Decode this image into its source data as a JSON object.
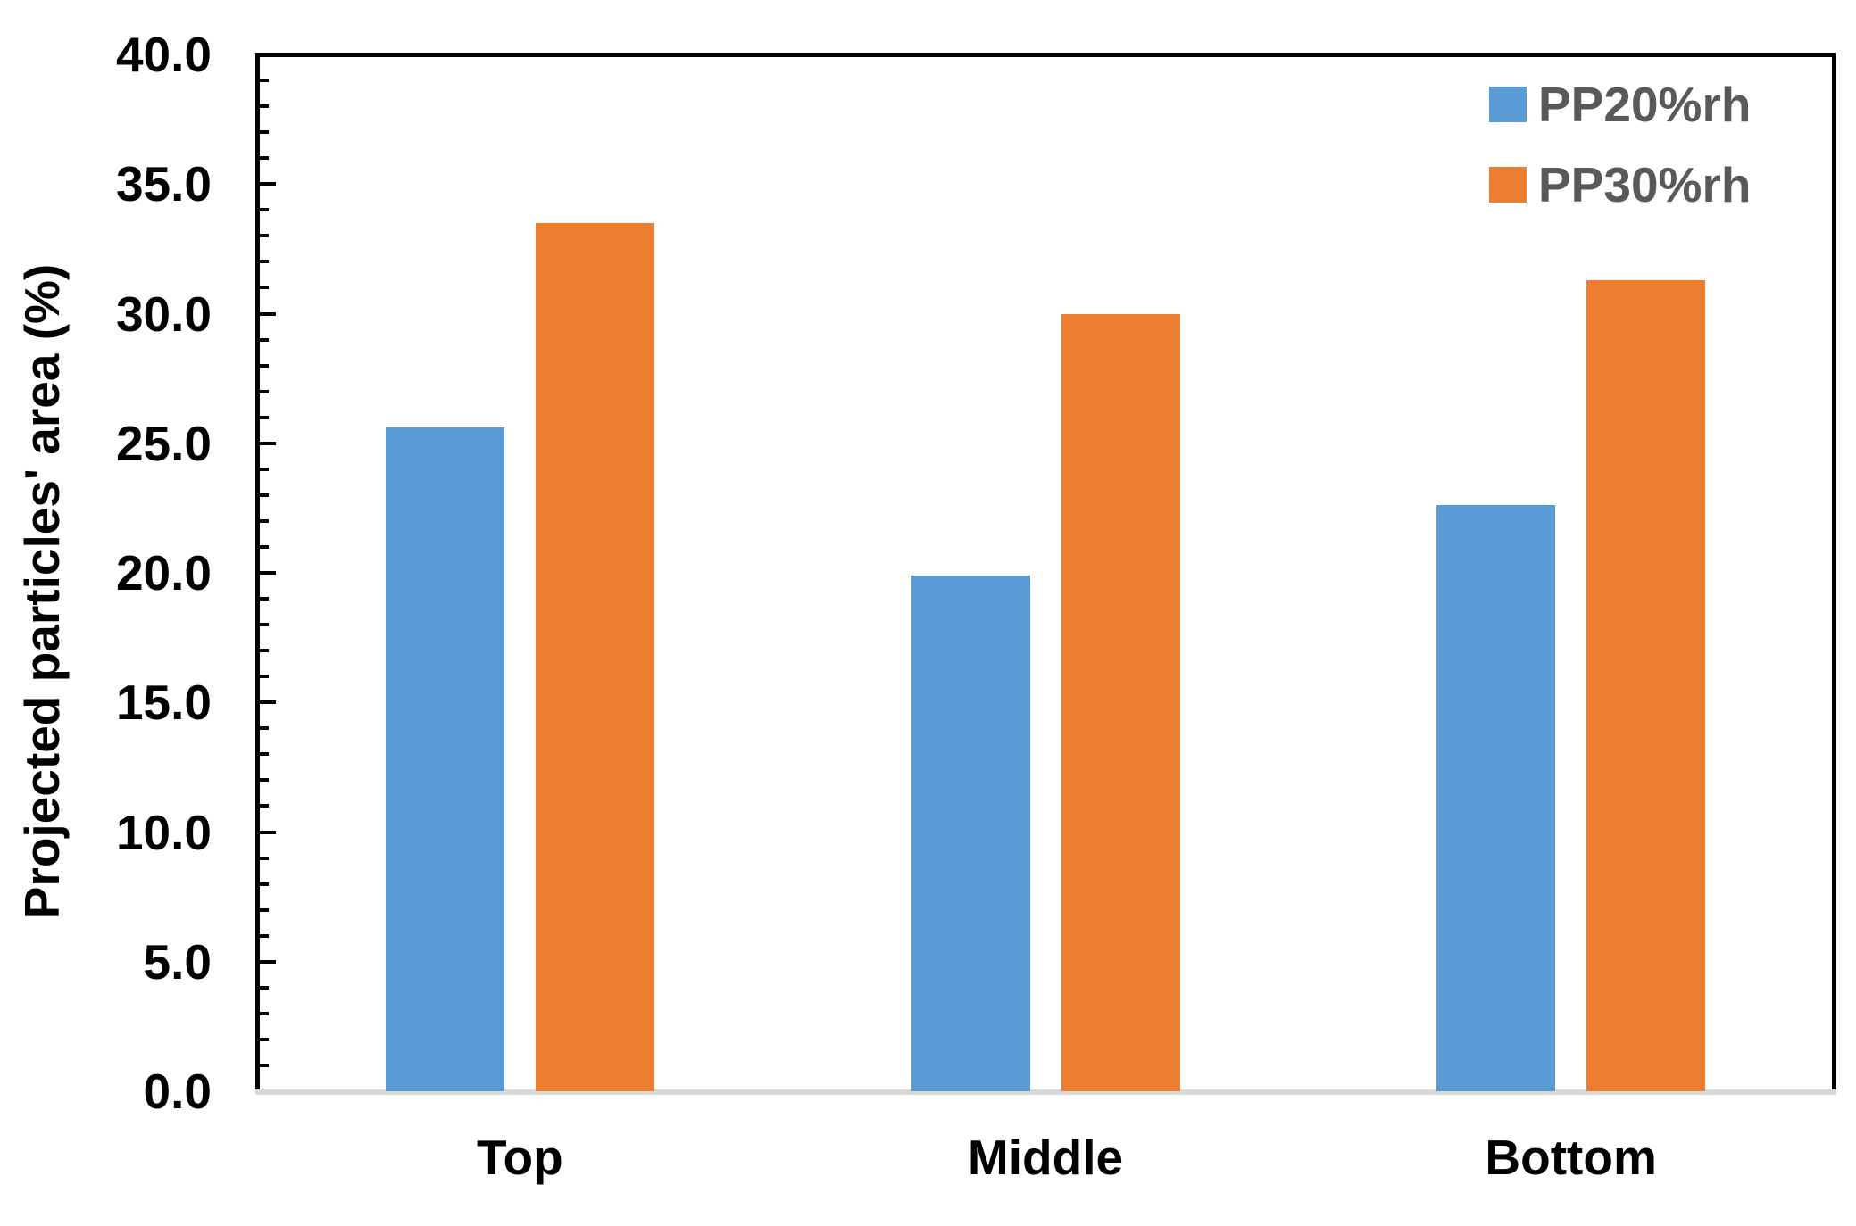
{
  "chart_data": {
    "type": "bar",
    "title": "",
    "categories": [
      "Top",
      "Middle",
      "Bottom"
    ],
    "series": [
      {
        "name": "PP20%rh",
        "color": "#5b9bd5",
        "values": [
          25.6,
          19.9,
          22.6
        ]
      },
      {
        "name": "PP30%rh",
        "color": "#ed7d31",
        "values": [
          33.5,
          30.0,
          31.3
        ]
      }
    ],
    "xlabel": "",
    "ylabel": "Projected particles' area (%)",
    "ylim": [
      0,
      40
    ],
    "ytick_step": 5,
    "minor_tick_step": 1,
    "ytick_labels": [
      "0.0",
      "5.0",
      "10.0",
      "15.0",
      "20.0",
      "25.0",
      "30.0",
      "35.0",
      "40.0"
    ],
    "grid": false,
    "legend_position": "top-right-inside",
    "colors": {
      "frame": "#000000",
      "baseline": "#d9d9d9",
      "tick_label_text": "#000000",
      "category_label_text": "#000000",
      "legend_text": "#595959",
      "background": "#ffffff"
    }
  }
}
